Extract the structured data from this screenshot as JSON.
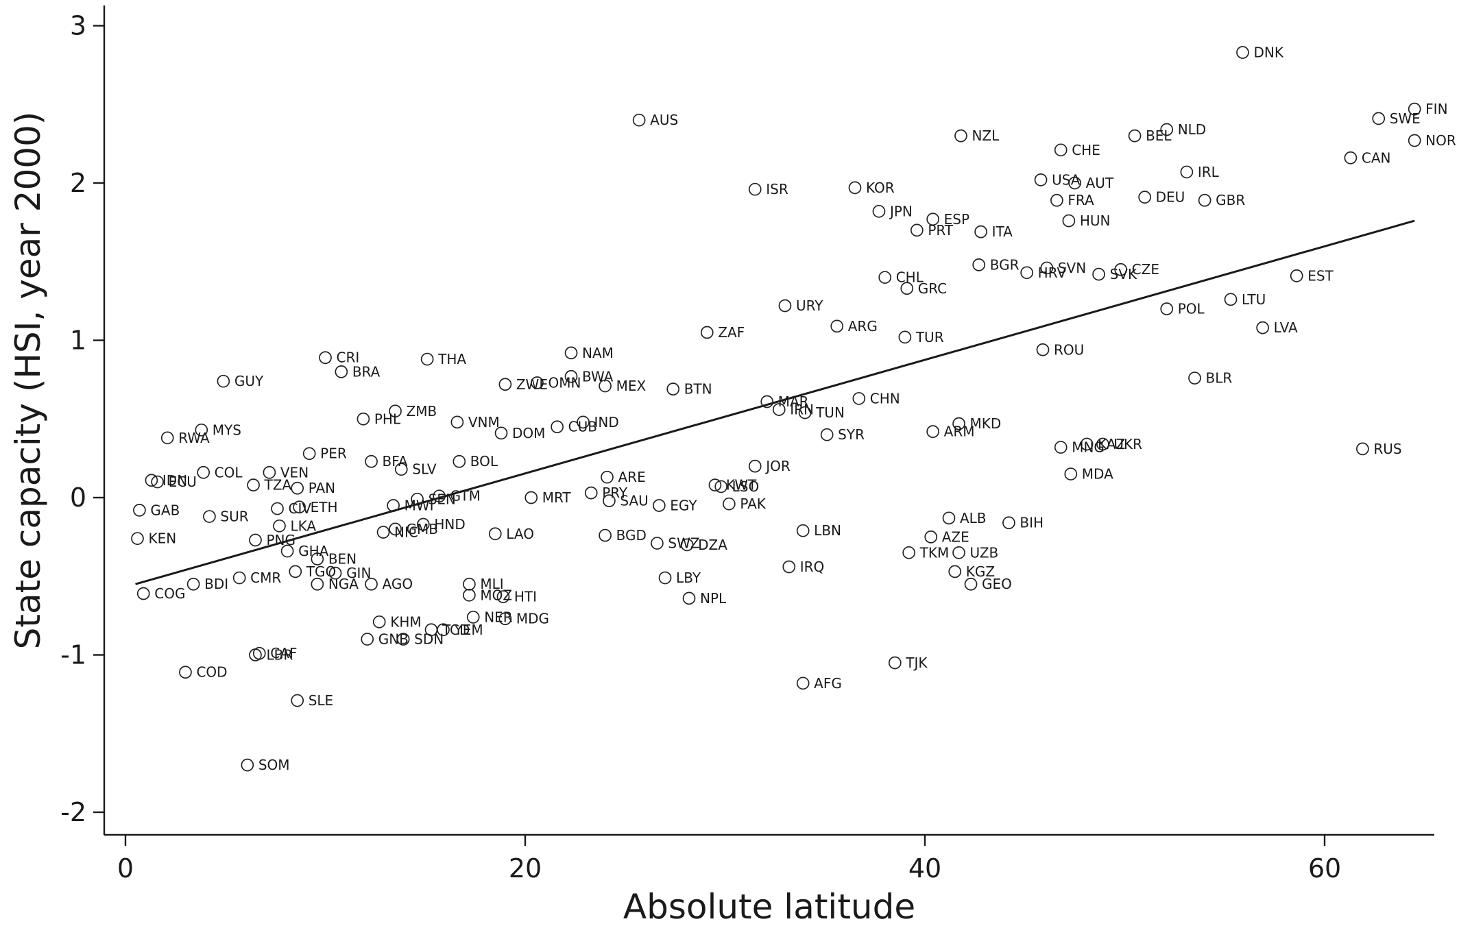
{
  "chart_data": {
    "type": "scatter",
    "xlabel": "Absolute latitude",
    "ylabel": "State capacity (HSI, year 2000)",
    "xlim": [
      -1,
      65.5
    ],
    "ylim": [
      -2.2,
      3.15
    ],
    "xticks": [
      0,
      20,
      40,
      60
    ],
    "yticks": [
      -2,
      -1,
      0,
      1,
      2,
      3
    ],
    "xtick_labels": [
      "0",
      "20",
      "40",
      "60"
    ],
    "ytick_labels": [
      "-2",
      "-1",
      "0",
      "1",
      "2",
      "3"
    ],
    "grid": false,
    "legend": "none",
    "fit_line": {
      "x": [
        0.5,
        64.5
      ],
      "y": [
        -0.55,
        1.76
      ]
    },
    "points": [
      {
        "label": "DNK",
        "x": 55.9,
        "y": 2.83
      },
      {
        "label": "FIN",
        "x": 64.5,
        "y": 2.47
      },
      {
        "label": "SWE",
        "x": 62.7,
        "y": 2.41
      },
      {
        "label": "NOR",
        "x": 64.5,
        "y": 2.27
      },
      {
        "label": "CAN",
        "x": 61.3,
        "y": 2.16
      },
      {
        "label": "AUS",
        "x": 25.7,
        "y": 2.4
      },
      {
        "label": "NZL",
        "x": 41.8,
        "y": 2.3
      },
      {
        "label": "NLD",
        "x": 52.1,
        "y": 2.34
      },
      {
        "label": "BEL",
        "x": 50.5,
        "y": 2.3
      },
      {
        "label": "CHE",
        "x": 46.8,
        "y": 2.21
      },
      {
        "label": "IRL",
        "x": 53.1,
        "y": 2.07
      },
      {
        "label": "USA",
        "x": 45.8,
        "y": 2.02
      },
      {
        "label": "AUT",
        "x": 47.5,
        "y": 2.0
      },
      {
        "label": "ISR",
        "x": 31.5,
        "y": 1.96
      },
      {
        "label": "KOR",
        "x": 36.5,
        "y": 1.97
      },
      {
        "label": "DEU",
        "x": 51.0,
        "y": 1.91
      },
      {
        "label": "FRA",
        "x": 46.6,
        "y": 1.89
      },
      {
        "label": "GBR",
        "x": 54.0,
        "y": 1.89
      },
      {
        "label": "JPN",
        "x": 37.7,
        "y": 1.82
      },
      {
        "label": "ESP",
        "x": 40.4,
        "y": 1.77
      },
      {
        "label": "HUN",
        "x": 47.2,
        "y": 1.76
      },
      {
        "label": "PRT",
        "x": 39.6,
        "y": 1.7
      },
      {
        "label": "ITA",
        "x": 42.8,
        "y": 1.69
      },
      {
        "label": "BGR",
        "x": 42.7,
        "y": 1.48
      },
      {
        "label": "SVN",
        "x": 46.1,
        "y": 1.46
      },
      {
        "label": "CZE",
        "x": 49.8,
        "y": 1.45
      },
      {
        "label": "HRV",
        "x": 45.1,
        "y": 1.43
      },
      {
        "label": "SVK",
        "x": 48.7,
        "y": 1.42
      },
      {
        "label": "EST",
        "x": 58.6,
        "y": 1.41
      },
      {
        "label": "CHL",
        "x": 38.0,
        "y": 1.4
      },
      {
        "label": "GRC",
        "x": 39.1,
        "y": 1.33
      },
      {
        "label": "LTU",
        "x": 55.3,
        "y": 1.26
      },
      {
        "label": "URY",
        "x": 33.0,
        "y": 1.22
      },
      {
        "label": "POL",
        "x": 52.1,
        "y": 1.2
      },
      {
        "label": "ARG",
        "x": 35.6,
        "y": 1.09
      },
      {
        "label": "LVA",
        "x": 56.9,
        "y": 1.08
      },
      {
        "label": "ZAF",
        "x": 29.1,
        "y": 1.05
      },
      {
        "label": "TUR",
        "x": 39.0,
        "y": 1.02
      },
      {
        "label": "ROU",
        "x": 45.9,
        "y": 0.94
      },
      {
        "label": "NAM",
        "x": 22.3,
        "y": 0.92
      },
      {
        "label": "CRI",
        "x": 10.0,
        "y": 0.89
      },
      {
        "label": "THA",
        "x": 15.1,
        "y": 0.88
      },
      {
        "label": "BRA",
        "x": 10.8,
        "y": 0.8
      },
      {
        "label": "BWA",
        "x": 22.3,
        "y": 0.77
      },
      {
        "label": "BLR",
        "x": 53.5,
        "y": 0.76
      },
      {
        "label": "GUY",
        "x": 4.9,
        "y": 0.74
      },
      {
        "label": "OMN",
        "x": 20.6,
        "y": 0.73
      },
      {
        "label": "ZWE",
        "x": 19.0,
        "y": 0.72
      },
      {
        "label": "MEX",
        "x": 24.0,
        "y": 0.71
      },
      {
        "label": "BTN",
        "x": 27.4,
        "y": 0.69
      },
      {
        "label": "CHN",
        "x": 36.7,
        "y": 0.63
      },
      {
        "label": "MAR",
        "x": 32.1,
        "y": 0.61
      },
      {
        "label": "IRN",
        "x": 32.7,
        "y": 0.56
      },
      {
        "label": "ZMB",
        "x": 13.5,
        "y": 0.55
      },
      {
        "label": "TUN",
        "x": 34.0,
        "y": 0.54
      },
      {
        "label": "PHL",
        "x": 11.9,
        "y": 0.5
      },
      {
        "label": "VNM",
        "x": 16.6,
        "y": 0.48
      },
      {
        "label": "IND",
        "x": 22.9,
        "y": 0.48
      },
      {
        "label": "MKD",
        "x": 41.7,
        "y": 0.47
      },
      {
        "label": "CUB",
        "x": 21.6,
        "y": 0.45
      },
      {
        "label": "MYS",
        "x": 3.8,
        "y": 0.43
      },
      {
        "label": "DOM",
        "x": 18.8,
        "y": 0.41
      },
      {
        "label": "ARM",
        "x": 40.4,
        "y": 0.42
      },
      {
        "label": "SYR",
        "x": 35.1,
        "y": 0.4
      },
      {
        "label": "RWA",
        "x": 2.1,
        "y": 0.38
      },
      {
        "label": "KAZ",
        "x": 48.1,
        "y": 0.34
      },
      {
        "label": "UKR",
        "x": 48.9,
        "y": 0.34
      },
      {
        "label": "MNG",
        "x": 46.8,
        "y": 0.32
      },
      {
        "label": "RUS",
        "x": 61.9,
        "y": 0.31
      },
      {
        "label": "PER",
        "x": 9.2,
        "y": 0.28
      },
      {
        "label": "BFA",
        "x": 12.3,
        "y": 0.23
      },
      {
        "label": "BOL",
        "x": 16.7,
        "y": 0.23
      },
      {
        "label": "JOR",
        "x": 31.5,
        "y": 0.2
      },
      {
        "label": "SLV",
        "x": 13.8,
        "y": 0.18
      },
      {
        "label": "COL",
        "x": 3.9,
        "y": 0.16
      },
      {
        "label": "VEN",
        "x": 7.2,
        "y": 0.16
      },
      {
        "label": "MDA",
        "x": 47.3,
        "y": 0.15
      },
      {
        "label": "ARE",
        "x": 24.1,
        "y": 0.13
      },
      {
        "label": "IDN",
        "x": 1.3,
        "y": 0.11
      },
      {
        "label": "ECU",
        "x": 1.6,
        "y": 0.1
      },
      {
        "label": "TZA",
        "x": 6.4,
        "y": 0.08
      },
      {
        "label": "KWT",
        "x": 29.5,
        "y": 0.08
      },
      {
        "label": "LSO",
        "x": 29.8,
        "y": 0.07
      },
      {
        "label": "PAN",
        "x": 8.6,
        "y": 0.06
      },
      {
        "label": "PRY",
        "x": 23.3,
        "y": 0.03
      },
      {
        "label": "MRT",
        "x": 20.3,
        "y": 0.0
      },
      {
        "label": "SEN",
        "x": 14.6,
        "y": -0.01
      },
      {
        "label": "GTM",
        "x": 15.7,
        "y": 0.01
      },
      {
        "label": "SAU",
        "x": 24.2,
        "y": -0.02
      },
      {
        "label": "MWI",
        "x": 13.4,
        "y": -0.05
      },
      {
        "label": "EGY",
        "x": 26.7,
        "y": -0.05
      },
      {
        "label": "PAK",
        "x": 30.2,
        "y": -0.04
      },
      {
        "label": "GAB",
        "x": 0.7,
        "y": -0.08
      },
      {
        "label": "CIV",
        "x": 7.6,
        "y": -0.07
      },
      {
        "label": "ETH",
        "x": 8.7,
        "y": -0.06
      },
      {
        "label": "SUR",
        "x": 4.2,
        "y": -0.12
      },
      {
        "label": "LKA",
        "x": 7.7,
        "y": -0.18
      },
      {
        "label": "HND",
        "x": 14.9,
        "y": -0.17
      },
      {
        "label": "GMB",
        "x": 13.5,
        "y": -0.2
      },
      {
        "label": "NIC",
        "x": 12.9,
        "y": -0.22
      },
      {
        "label": "LBN",
        "x": 33.9,
        "y": -0.21
      },
      {
        "label": "LAO",
        "x": 18.5,
        "y": -0.23
      },
      {
        "label": "BGD",
        "x": 24.0,
        "y": -0.24
      },
      {
        "label": "KEN",
        "x": 0.6,
        "y": -0.26
      },
      {
        "label": "PNG",
        "x": 6.5,
        "y": -0.27
      },
      {
        "label": "ALB",
        "x": 41.2,
        "y": -0.13
      },
      {
        "label": "BIH",
        "x": 44.2,
        "y": -0.16
      },
      {
        "label": "AZE",
        "x": 40.3,
        "y": -0.25
      },
      {
        "label": "SWZ",
        "x": 26.6,
        "y": -0.29
      },
      {
        "label": "DZA",
        "x": 28.1,
        "y": -0.3
      },
      {
        "label": "GHA",
        "x": 8.1,
        "y": -0.34
      },
      {
        "label": "TKM",
        "x": 39.2,
        "y": -0.35
      },
      {
        "label": "UZB",
        "x": 41.7,
        "y": -0.35
      },
      {
        "label": "BEN",
        "x": 9.6,
        "y": -0.39
      },
      {
        "label": "IRQ",
        "x": 33.2,
        "y": -0.44
      },
      {
        "label": "TGO",
        "x": 8.5,
        "y": -0.47
      },
      {
        "label": "GIN",
        "x": 10.5,
        "y": -0.48
      },
      {
        "label": "KGZ",
        "x": 41.5,
        "y": -0.47
      },
      {
        "label": "CMR",
        "x": 5.7,
        "y": -0.51
      },
      {
        "label": "LBY",
        "x": 27.0,
        "y": -0.51
      },
      {
        "label": "BDI",
        "x": 3.4,
        "y": -0.55
      },
      {
        "label": "NGA",
        "x": 9.6,
        "y": -0.55
      },
      {
        "label": "AGO",
        "x": 12.3,
        "y": -0.55
      },
      {
        "label": "MLI",
        "x": 17.2,
        "y": -0.55
      },
      {
        "label": "GEO",
        "x": 42.3,
        "y": -0.55
      },
      {
        "label": "COG",
        "x": 0.9,
        "y": -0.61
      },
      {
        "label": "MOZ",
        "x": 17.2,
        "y": -0.62
      },
      {
        "label": "HTI",
        "x": 18.9,
        "y": -0.63
      },
      {
        "label": "NPL",
        "x": 28.2,
        "y": -0.64
      },
      {
        "label": "KHM",
        "x": 12.7,
        "y": -0.79
      },
      {
        "label": "NER",
        "x": 17.4,
        "y": -0.76
      },
      {
        "label": "MDG",
        "x": 19.0,
        "y": -0.77
      },
      {
        "label": "YEM",
        "x": 15.9,
        "y": -0.84
      },
      {
        "label": "TCD",
        "x": 15.3,
        "y": -0.84
      },
      {
        "label": "GNB",
        "x": 12.1,
        "y": -0.9
      },
      {
        "label": "SDN",
        "x": 13.9,
        "y": -0.9
      },
      {
        "label": "LBR",
        "x": 6.5,
        "y": -1.0
      },
      {
        "label": "CAF",
        "x": 6.7,
        "y": -0.99
      },
      {
        "label": "TJK",
        "x": 38.5,
        "y": -1.05
      },
      {
        "label": "COD",
        "x": 3.0,
        "y": -1.11
      },
      {
        "label": "AFG",
        "x": 33.9,
        "y": -1.18
      },
      {
        "label": "SLE",
        "x": 8.6,
        "y": -1.29
      },
      {
        "label": "SOM",
        "x": 6.1,
        "y": -1.7
      }
    ]
  }
}
